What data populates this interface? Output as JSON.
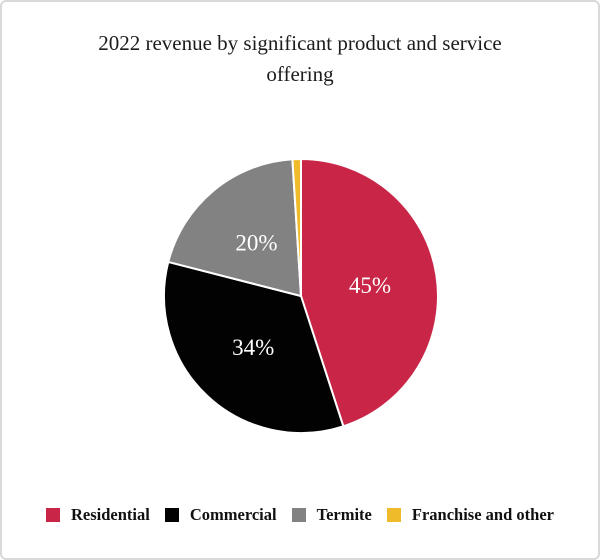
{
  "title": "2022 revenue by significant product and service offering",
  "chart_data": {
    "type": "pie",
    "title": "2022 revenue by significant product and service offering",
    "categories": [
      "Residential",
      "Commercial",
      "Termite",
      "Franchise and other"
    ],
    "values": [
      45,
      34,
      20,
      1
    ],
    "slice_labels": [
      "45%",
      "34%",
      "20%",
      ""
    ],
    "unit": "%",
    "colors": [
      "#C92647",
      "#020202",
      "#828282",
      "#EFBB2A"
    ],
    "slice_label_color": "#FFFFFF",
    "separator_color": "#FFFFFF",
    "start_angle_deg": 0,
    "direction": "clockwise",
    "legend_position": "bottom",
    "min_pct_for_label": 2
  }
}
